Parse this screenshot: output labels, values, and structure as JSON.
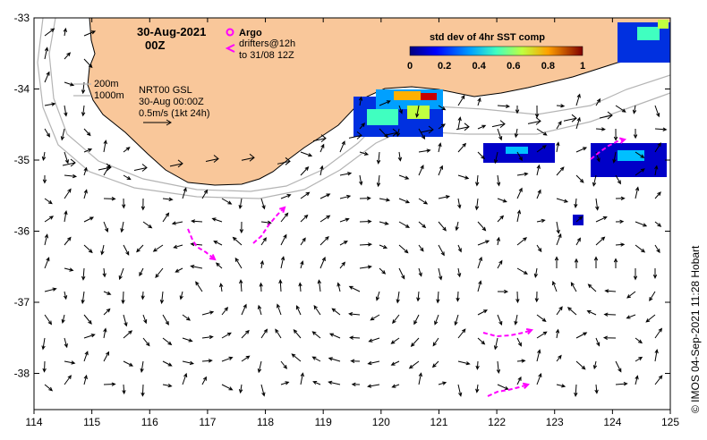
{
  "map": {
    "date_title": "30-Aug-2021",
    "hour_title": "00Z",
    "legend": {
      "argo_label": "Argo",
      "drifters_label": "drifters@12h",
      "drifters_to": "to 31/08 12Z"
    },
    "colorbar": {
      "title": "std dev of 4hr SST comp",
      "ticks": [
        "0",
        "0.2",
        "0.4",
        "0.6",
        "0.8",
        "1"
      ]
    },
    "contours": {
      "depth_200": "200m",
      "depth_1000": "1000m"
    },
    "info": {
      "model": "NRT00 GSL",
      "time": "30-Aug 00:00Z",
      "scale": "0.5m/s (1kt 24h)"
    },
    "x_ticks": [
      "114",
      "115",
      "116",
      "117",
      "118",
      "119",
      "120",
      "121",
      "122",
      "123",
      "124",
      "125"
    ],
    "y_ticks": [
      "-33",
      "-34",
      "-35",
      "-36",
      "-37",
      "-38"
    ],
    "credit": "© IMOS 04-Sep-2021 11:28 Hobart",
    "colors": {
      "land": "#f9c79a",
      "drifter": "#ff00ff",
      "contour": "#b4b4b4",
      "arrow": "#000000"
    }
  }
}
